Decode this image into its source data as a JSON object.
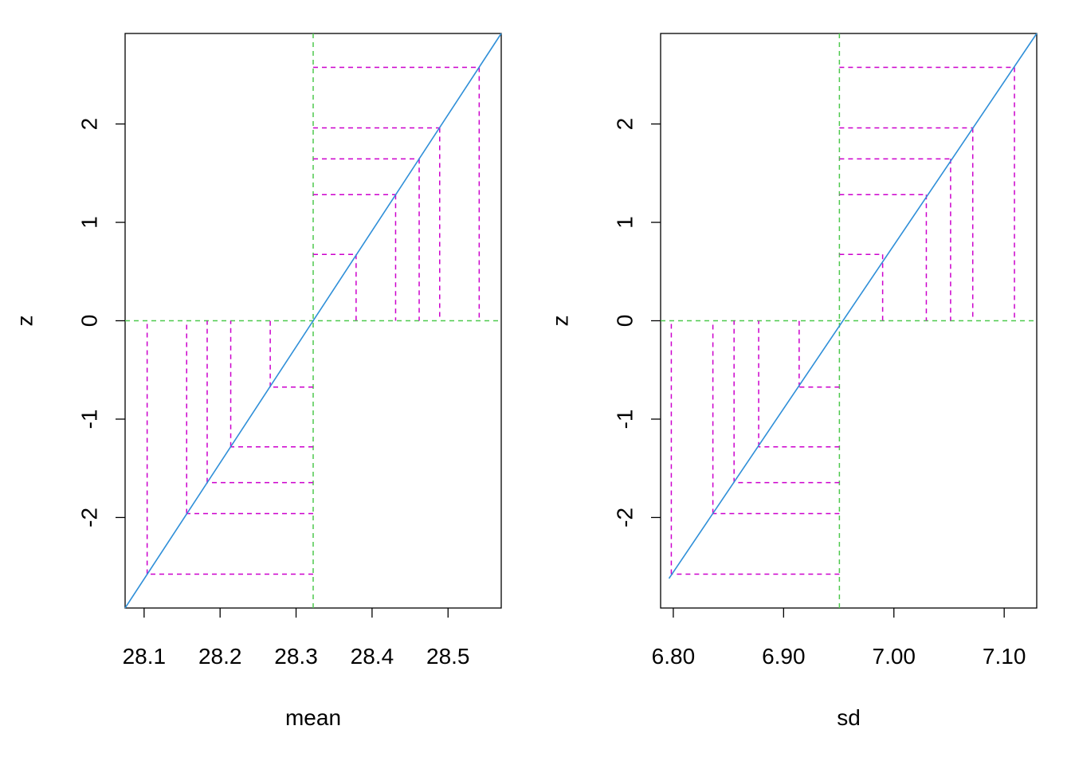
{
  "colors": {
    "background": "#ffffff",
    "axis": "#000000",
    "diagonal_line": "#2f8fd8",
    "drop_lines": "#cc00cc",
    "center_lines": "#4ec94e"
  },
  "chart_data": [
    {
      "type": "line",
      "xlabel": "mean",
      "ylabel": "z",
      "xlim": [
        28.075,
        28.57
      ],
      "ylim": [
        -2.92,
        2.92
      ],
      "x_ticks": [
        28.1,
        28.2,
        28.3,
        28.4,
        28.5
      ],
      "x_tick_labels": [
        "28.1",
        "28.2",
        "28.3",
        "28.4",
        "28.5"
      ],
      "y_ticks": [
        -2,
        -1,
        0,
        1,
        2
      ],
      "y_tick_labels": [
        "-2",
        "-1",
        "0",
        "1",
        "2"
      ],
      "center": {
        "x": 28.3225,
        "z": 0
      },
      "line": {
        "x": [
          28.075,
          28.57
        ],
        "z": [
          -2.92,
          2.92
        ]
      },
      "quantile_points": {
        "z": [
          -2.576,
          -1.96,
          -1.645,
          -1.282,
          -0.674,
          0.674,
          1.282,
          1.645,
          1.96,
          2.576
        ],
        "x": [
          28.104,
          28.156,
          28.183,
          28.214,
          28.266,
          28.379,
          28.431,
          28.462,
          28.489,
          28.541
        ]
      }
    },
    {
      "type": "line",
      "xlabel": "sd",
      "ylabel": "z",
      "xlim": [
        6.7885,
        7.1295
      ],
      "ylim": [
        -2.92,
        2.92
      ],
      "x_ticks": [
        6.8,
        6.9,
        7.0,
        7.1
      ],
      "x_tick_labels": [
        "6.80",
        "6.90",
        "7.00",
        "7.10"
      ],
      "y_ticks": [
        -2,
        -1,
        0,
        1,
        2
      ],
      "y_tick_labels": [
        "-2",
        "-1",
        "0",
        "1",
        "2"
      ],
      "center": {
        "x": 6.9506,
        "z": 0
      },
      "line": {
        "x": [
          6.7961,
          7.1295
        ],
        "z": [
          -2.62,
          2.92
        ]
      },
      "quantile_points": {
        "z": [
          -2.576,
          -1.96,
          -1.645,
          -1.282,
          -0.674,
          0.674,
          1.282,
          1.645,
          1.96,
          2.576
        ],
        "x": [
          6.7982,
          6.8359,
          6.8551,
          6.8774,
          6.9141,
          6.9898,
          7.0294,
          7.0514,
          7.0715,
          7.1093
        ]
      }
    }
  ]
}
